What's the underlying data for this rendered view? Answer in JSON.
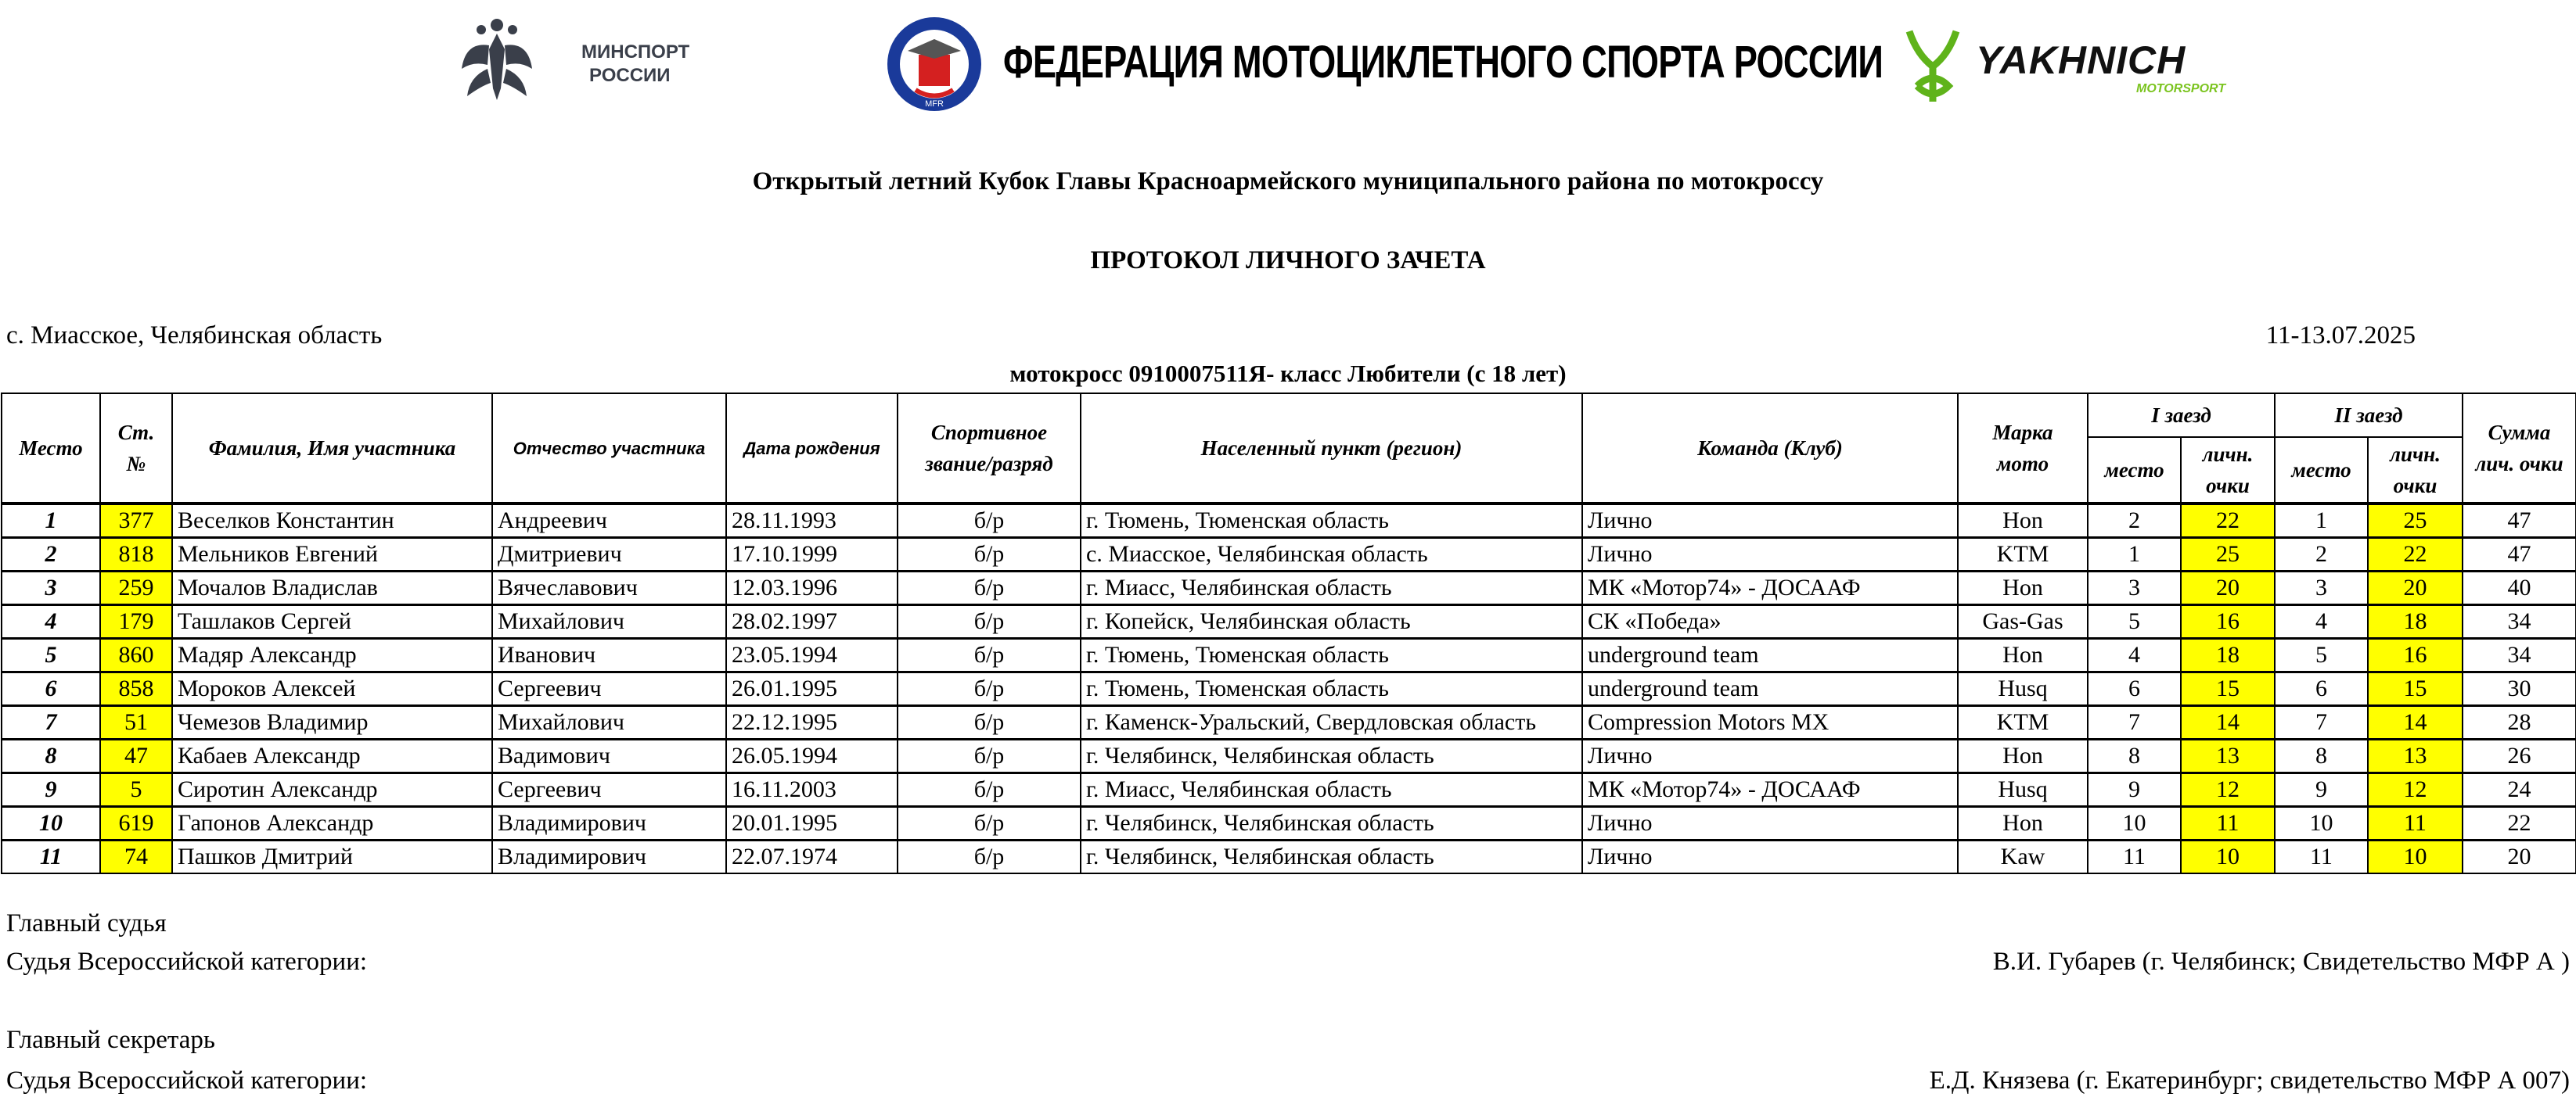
{
  "logos": {
    "minsport": {
      "line1": "МИНСПОРТ",
      "line2": "РОССИИ"
    },
    "mfr": {
      "title": "ФЕДЕРАЦИЯ МОТОЦИКЛЕТНОГО СПОРТА РОССИИ",
      "emblem_text": "MFR",
      "color": "#1a3a9a"
    },
    "yakhnich": {
      "name": "YAKHNICH",
      "sub": "MOTORSPORT",
      "color": "#7bc41f"
    }
  },
  "event_title": "Открытый летний Кубок Главы Красноармейского муниципального района по мотокроссу",
  "protocol_title": "ПРОТОКОЛ ЛИЧНОГО ЗАЧЕТА",
  "location": "с. Миасское, Челябинская область",
  "dates": "11-13.07.2025",
  "class_title": "мотокросс 0910007511Я- класс Любители (с 18 лет)",
  "table": {
    "headers": {
      "place": "Место",
      "number_1": "Ст.",
      "number_2": "№",
      "name": "Фамилия, Имя участника",
      "patronymic": "Отчество участника",
      "birth": "Дата рождения",
      "rank_1": "Спортивное",
      "rank_2": "звание/разряд",
      "city": "Населенный пункт (регион)",
      "team": "Команда (Клуб)",
      "moto_1": "Марка",
      "moto_2": "мото",
      "race1": "I заезд",
      "race2": "II заезд",
      "sub_place": "место",
      "sub_points_1": "личн.",
      "sub_points_2": "очки",
      "sum_1": "Сумма",
      "sum_2": "лич. очки"
    },
    "highlight_color": "#ffff00",
    "rows": [
      {
        "place": "1",
        "num": "377",
        "name": "Веселков Константин",
        "patronymic": "Андреевич",
        "birth": "28.11.1993",
        "rank": "б/р",
        "city": "г. Тюмень, Тюменская область",
        "team": "Лично",
        "moto": "Hon",
        "r1_place": "2",
        "r1_pts": "22",
        "r2_place": "1",
        "r2_pts": "25",
        "sum": "47"
      },
      {
        "place": "2",
        "num": "818",
        "name": "Мельников Евгений",
        "patronymic": "Дмитриевич",
        "birth": "17.10.1999",
        "rank": "б/р",
        "city": "с. Миасское, Челябинская  область",
        "team": "Лично",
        "moto": "KTM",
        "r1_place": "1",
        "r1_pts": "25",
        "r2_place": "2",
        "r2_pts": "22",
        "sum": "47"
      },
      {
        "place": "3",
        "num": "259",
        "name": "Мочалов Владислав",
        "patronymic": "Вячеславович",
        "birth": "12.03.1996",
        "rank": "б/р",
        "city": "г. Миасс, Челябинская область",
        "team": "МК «Мотор74» - ДОСААФ",
        "moto": "Hon",
        "r1_place": "3",
        "r1_pts": "20",
        "r2_place": "3",
        "r2_pts": "20",
        "sum": "40"
      },
      {
        "place": "4",
        "num": "179",
        "name": "Ташлаков Сергей",
        "patronymic": "Михайлович",
        "birth": "28.02.1997",
        "rank": "б/р",
        "city": "г. Копейск, Челябинская область",
        "team": "СК «Победа»",
        "moto": "Gas-Gas",
        "r1_place": "5",
        "r1_pts": "16",
        "r2_place": "4",
        "r2_pts": "18",
        "sum": "34"
      },
      {
        "place": "5",
        "num": "860",
        "name": "Мадяр Александр",
        "patronymic": "Иванович",
        "birth": "23.05.1994",
        "rank": "б/р",
        "city": "г. Тюмень, Тюменская область",
        "team": "underground team",
        "moto": "Hon",
        "r1_place": "4",
        "r1_pts": "18",
        "r2_place": "5",
        "r2_pts": "16",
        "sum": "34"
      },
      {
        "place": "6",
        "num": "858",
        "name": "Мороков Алексей",
        "patronymic": "Сергеевич",
        "birth": "26.01.1995",
        "rank": "б/р",
        "city": "г. Тюмень, Тюменская область",
        "team": "underground team",
        "moto": "Husq",
        "r1_place": "6",
        "r1_pts": "15",
        "r2_place": "6",
        "r2_pts": "15",
        "sum": "30"
      },
      {
        "place": "7",
        "num": "51",
        "name": "Чемезов Владимир",
        "patronymic": "Михайлович",
        "birth": "22.12.1995",
        "rank": "б/р",
        "city": "г. Каменск-Уральский, Свердловская область",
        "team": "Compression Motors MX",
        "moto": "KTM",
        "r1_place": "7",
        "r1_pts": "14",
        "r2_place": "7",
        "r2_pts": "14",
        "sum": "28"
      },
      {
        "place": "8",
        "num": "47",
        "name": "Кабаев Александр",
        "patronymic": "Вадимович",
        "birth": "26.05.1994",
        "rank": "б/р",
        "city": "г. Челябинск, Челябинская область",
        "team": "Лично",
        "moto": "Hon",
        "r1_place": "8",
        "r1_pts": "13",
        "r2_place": "8",
        "r2_pts": "13",
        "sum": "26"
      },
      {
        "place": "9",
        "num": "5",
        "name": "Сиротин Александр",
        "patronymic": "Сергеевич",
        "birth": "16.11.2003",
        "rank": "б/р",
        "city": "г. Миасс, Челябинская область",
        "team": "МК «Мотор74» - ДОСААФ",
        "moto": "Husq",
        "r1_place": "9",
        "r1_pts": "12",
        "r2_place": "9",
        "r2_pts": "12",
        "sum": "24"
      },
      {
        "place": "10",
        "num": "619",
        "name": "Гапонов Александр",
        "patronymic": "Владимирович",
        "birth": "20.01.1995",
        "rank": "б/р",
        "city": "г. Челябинск, Челябинская область",
        "team": "Лично",
        "moto": "Hon",
        "r1_place": "10",
        "r1_pts": "11",
        "r2_place": "10",
        "r2_pts": "11",
        "sum": "22"
      },
      {
        "place": "11",
        "num": "74",
        "name": "Пашков Дмитрий",
        "patronymic": "Владимирович",
        "birth": "22.07.1974",
        "rank": "б/р",
        "city": "г. Челябинск, Челябинская область",
        "team": "Лично",
        "moto": "Kaw",
        "r1_place": "11",
        "r1_pts": "10",
        "r2_place": "11",
        "r2_pts": "10",
        "sum": "20"
      }
    ]
  },
  "footer": {
    "chief_judge_label": "Главный судья",
    "chief_judge_category": "Судья Всероссийской категории:",
    "chief_judge_name": "В.И. Губарев (г. Челябинск; Свидетельство МФР А )",
    "chief_secretary_label": "Главный секретарь",
    "chief_secretary_category": "Судья Всероссийской категории:",
    "chief_secretary_name": "Е.Д. Князева (г. Екатеринбург; свидетельство МФР А 007)"
  }
}
